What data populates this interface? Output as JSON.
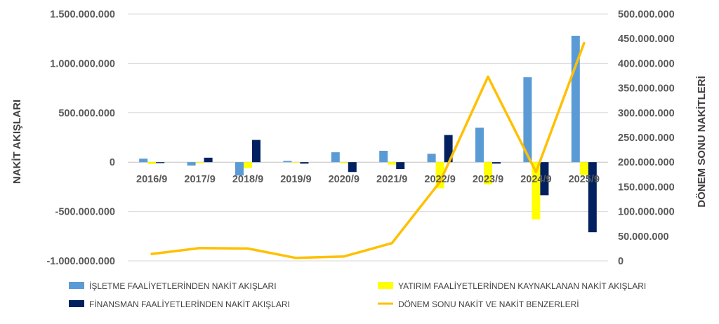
{
  "chart_data": {
    "type": "bar",
    "categories": [
      "2016/9",
      "2017/9",
      "2018/9",
      "2019/9",
      "2020/9",
      "2021/9",
      "2022/9",
      "2023/9",
      "2024/9",
      "2025/9"
    ],
    "series": [
      {
        "name": "İŞLETME FAALİYETLERİNDEN NAKİT AKIŞLARI",
        "type": "bar",
        "axis": "left",
        "color": "#5B9BD5",
        "values": [
          35000000,
          -35000000,
          -135000000,
          12000000,
          100000000,
          115000000,
          85000000,
          350000000,
          860000000,
          1280000000
        ]
      },
      {
        "name": "YATIRIM FAALİYETLERİNDEN KAYNAKLANAN NAKİT AKIŞLARI",
        "type": "bar",
        "axis": "left",
        "color": "#FFFF00",
        "values": [
          -20000000,
          -10000000,
          -60000000,
          -5000000,
          -10000000,
          -25000000,
          -265000000,
          -225000000,
          -580000000,
          -130000000
        ]
      },
      {
        "name": "FİNANSMAN FAALİYETLERİNDEN NAKİT AKIŞLARI",
        "type": "bar",
        "axis": "left",
        "color": "#002060",
        "values": [
          -10000000,
          45000000,
          225000000,
          -15000000,
          -100000000,
          -70000000,
          275000000,
          -15000000,
          -335000000,
          -710000000
        ]
      },
      {
        "name": "DÖNEM SONU NAKİT VE NAKİT BENZERLERİ",
        "type": "line",
        "axis": "right",
        "color": "#FFC000",
        "values": [
          14000000,
          26000000,
          25000000,
          6000000,
          9000000,
          36000000,
          160000000,
          373000000,
          180000000,
          441000000
        ]
      }
    ],
    "ylabel": "NAKİT AKIŞLARI",
    "y2label": "DÖNEM SONU NAKİTLERİ",
    "ylim": [
      -1000000000,
      1500000000
    ],
    "y2lim": [
      0,
      500000000
    ],
    "yticks": [
      {
        "value": 1500000000,
        "label": "1.500.000.000"
      },
      {
        "value": 1000000000,
        "label": "1.000.000.000"
      },
      {
        "value": 500000000,
        "label": "500.000.000"
      },
      {
        "value": 0,
        "label": "0"
      },
      {
        "value": -500000000,
        "label": "-500.000.000"
      },
      {
        "value": -1000000000,
        "label": "-1.000.000.000"
      }
    ],
    "y2ticks": [
      {
        "value": 500000000,
        "label": "500.000.000"
      },
      {
        "value": 450000000,
        "label": "450.000.000"
      },
      {
        "value": 400000000,
        "label": "400.000.000"
      },
      {
        "value": 350000000,
        "label": "350.000.000"
      },
      {
        "value": 300000000,
        "label": "300.000.000"
      },
      {
        "value": 250000000,
        "label": "250.000.000"
      },
      {
        "value": 200000000,
        "label": "200.000.000"
      },
      {
        "value": 150000000,
        "label": "150.000.000"
      },
      {
        "value": 100000000,
        "label": "100.000.000"
      },
      {
        "value": 50000000,
        "label": "50.000.000"
      },
      {
        "value": 0,
        "label": "0"
      }
    ],
    "grid": true,
    "legend_position": "bottom"
  }
}
